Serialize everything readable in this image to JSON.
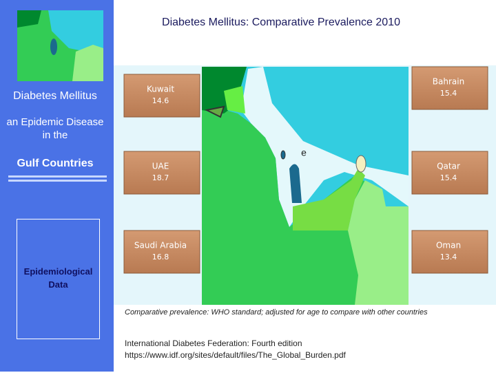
{
  "title": "Diabetes Mellitus:  Comparative Prevalence 2010",
  "sidebar": {
    "heading": "Diabetes Mellitus",
    "subheading": "an Epidemic Disease  in  the",
    "region": "Gulf  Countries",
    "box_label": "Epidemiological Data"
  },
  "map": {
    "label": "e"
  },
  "countries": [
    {
      "name": "Kuwait",
      "prevalence": 14.6
    },
    {
      "name": "Bahrain",
      "prevalence": 15.4
    },
    {
      "name": "UAE",
      "prevalence": 18.7
    },
    {
      "name": "Qatar",
      "prevalence": 15.4
    },
    {
      "name": "Saudi Arabia",
      "prevalence": 16.8
    },
    {
      "name": "Oman",
      "prevalence": 13.4
    }
  ],
  "footnote": "Comparative prevalence: WHO standard; adjusted for age to compare with other countries",
  "source": [
    "International Diabetes Federation: Fourth edition",
    "https://www.idf.org/sites/default/files/The_Global_Burden.pdf"
  ]
}
